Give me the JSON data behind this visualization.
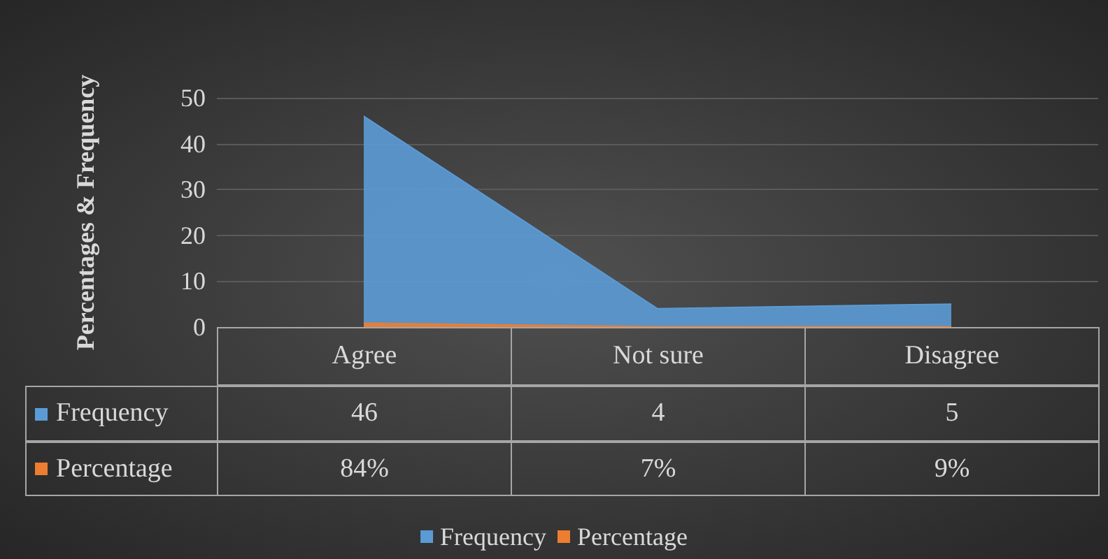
{
  "chart_data": {
    "type": "area",
    "ylabel": "Percentages & Frequency",
    "categories": [
      "Agree",
      "Not sure",
      "Disagree"
    ],
    "series": [
      {
        "name": "Frequency",
        "color": "#5b9bd5",
        "values": [
          46,
          4,
          5
        ],
        "value_labels": [
          "46",
          "4",
          "5"
        ]
      },
      {
        "name": "Percentage",
        "color": "#ed7d31",
        "values": [
          0.84,
          0.07,
          0.09
        ],
        "value_labels": [
          "84%",
          "7%",
          "9%"
        ]
      }
    ],
    "ylim": [
      0,
      50
    ],
    "yticks": [
      0,
      10,
      20,
      30,
      40,
      50
    ],
    "grid": "y",
    "legend": "bottom"
  }
}
